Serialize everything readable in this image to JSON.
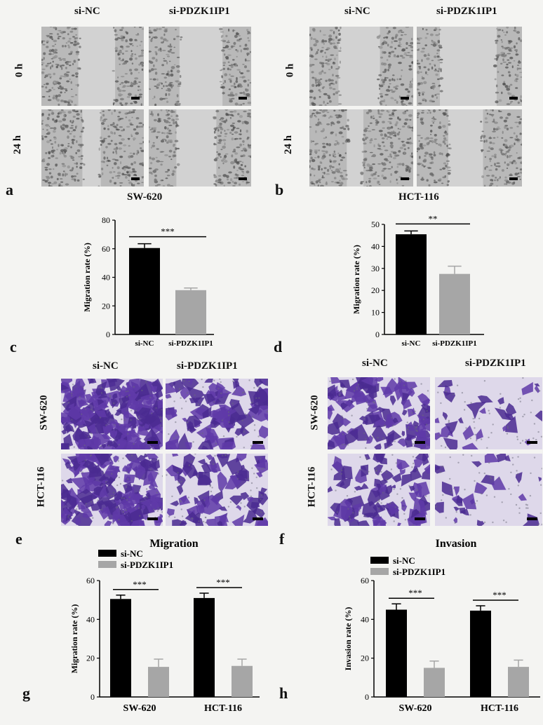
{
  "panels": {
    "a": {
      "letter": "a",
      "cell_line": "SW-620",
      "columns": [
        "si-NC",
        "si-PDZK1IP1"
      ],
      "rows": [
        "0 h",
        "24 h"
      ]
    },
    "b": {
      "letter": "b",
      "cell_line": "HCT-116",
      "columns": [
        "si-NC",
        "si-PDZK1IP1"
      ],
      "rows": [
        "0 h",
        "24 h"
      ]
    },
    "e": {
      "letter": "e",
      "columns": [
        "si-NC",
        "si-PDZK1IP1"
      ],
      "rows": [
        "SW-620",
        "HCT-116"
      ]
    },
    "f": {
      "letter": "f",
      "columns": [
        "si-NC",
        "si-PDZK1IP1"
      ],
      "rows": [
        "SW-620",
        "HCT-116"
      ]
    },
    "g_letter": "g",
    "h_letter": "h",
    "c_letter": "c",
    "d_letter": "d"
  },
  "chart_data": [
    {
      "id": "c",
      "type": "bar",
      "categories": [
        "si-NC",
        "si-PDZK1IP1"
      ],
      "values": [
        60.5,
        31
      ],
      "errors": [
        3,
        1.5
      ],
      "colors": [
        "#000000",
        "#a6a6a6"
      ],
      "ylabel": "Migration rate (%)",
      "ylim": [
        0,
        80
      ],
      "yticks": [
        0,
        20,
        40,
        60,
        80
      ],
      "significance": [
        "***"
      ]
    },
    {
      "id": "d",
      "type": "bar",
      "categories": [
        "si-NC",
        "si-PDZK1IP1"
      ],
      "values": [
        45.5,
        27.5
      ],
      "errors": [
        1.5,
        3.5
      ],
      "colors": [
        "#000000",
        "#a6a6a6"
      ],
      "ylabel": "Migration rate (%)",
      "ylim": [
        0,
        50
      ],
      "yticks": [
        0,
        10,
        20,
        30,
        40,
        50
      ],
      "significance": [
        "**"
      ]
    },
    {
      "id": "g",
      "type": "bar",
      "title": "Migration",
      "categories": [
        "SW-620",
        "HCT-116"
      ],
      "series": [
        {
          "name": "si-NC",
          "values": [
            50.5,
            51
          ],
          "errors": [
            2,
            2.5
          ],
          "color": "#000000"
        },
        {
          "name": "si-PDZK1IP1",
          "values": [
            15.5,
            16
          ],
          "errors": [
            4,
            3.5
          ],
          "color": "#a6a6a6"
        }
      ],
      "ylabel": "Migration rate (%)",
      "ylim": [
        0,
        60
      ],
      "yticks": [
        0,
        20,
        40,
        60
      ],
      "significance": [
        "***",
        "***"
      ],
      "legend": "top-left"
    },
    {
      "id": "h",
      "type": "bar",
      "title": "Invasion",
      "categories": [
        "SW-620",
        "HCT-116"
      ],
      "series": [
        {
          "name": "si-NC",
          "values": [
            45,
            44.5
          ],
          "errors": [
            3,
            2.5
          ],
          "color": "#000000"
        },
        {
          "name": "si-PDZK1IP1",
          "values": [
            15,
            15.5
          ],
          "errors": [
            3.5,
            3.5
          ],
          "color": "#a6a6a6"
        }
      ],
      "ylabel": "Invasion rate (%)",
      "ylim": [
        0,
        60
      ],
      "yticks": [
        0,
        20,
        40,
        60
      ],
      "significance": [
        "***",
        "***"
      ],
      "legend": "top-left"
    }
  ]
}
